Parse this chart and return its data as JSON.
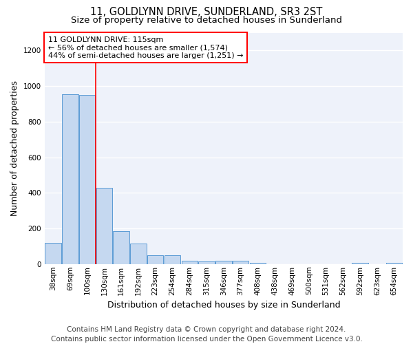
{
  "title": "11, GOLDLYNN DRIVE, SUNDERLAND, SR3 2ST",
  "subtitle": "Size of property relative to detached houses in Sunderland",
  "xlabel": "Distribution of detached houses by size in Sunderland",
  "ylabel": "Number of detached properties",
  "footer_line1": "Contains HM Land Registry data © Crown copyright and database right 2024.",
  "footer_line2": "Contains public sector information licensed under the Open Government Licence v3.0.",
  "bar_labels": [
    "38sqm",
    "69sqm",
    "100sqm",
    "130sqm",
    "161sqm",
    "192sqm",
    "223sqm",
    "254sqm",
    "284sqm",
    "315sqm",
    "346sqm",
    "377sqm",
    "408sqm",
    "438sqm",
    "469sqm",
    "500sqm",
    "531sqm",
    "562sqm",
    "592sqm",
    "623sqm",
    "654sqm"
  ],
  "bar_values": [
    120,
    955,
    950,
    430,
    185,
    115,
    50,
    50,
    20,
    15,
    20,
    18,
    5,
    0,
    0,
    0,
    0,
    0,
    5,
    0,
    5
  ],
  "bar_color": "#c5d8f0",
  "bar_edgecolor": "#5b9bd5",
  "annotation_box_text": "11 GOLDLYNN DRIVE: 115sqm\n← 56% of detached houses are smaller (1,574)\n44% of semi-detached houses are larger (1,251) →",
  "annotation_box_facecolor": "white",
  "annotation_box_edgecolor": "red",
  "annotation_vline_color": "red",
  "annotation_vline_x": 2.5,
  "ylim": [
    0,
    1300
  ],
  "yticks": [
    0,
    200,
    400,
    600,
    800,
    1000,
    1200
  ],
  "axes_background": "#eef2fa",
  "grid_color": "white",
  "title_fontsize": 10.5,
  "subtitle_fontsize": 9.5,
  "tick_fontsize": 7.5,
  "ylabel_fontsize": 9,
  "xlabel_fontsize": 9,
  "annotation_fontsize": 8,
  "footer_fontsize": 7.5
}
